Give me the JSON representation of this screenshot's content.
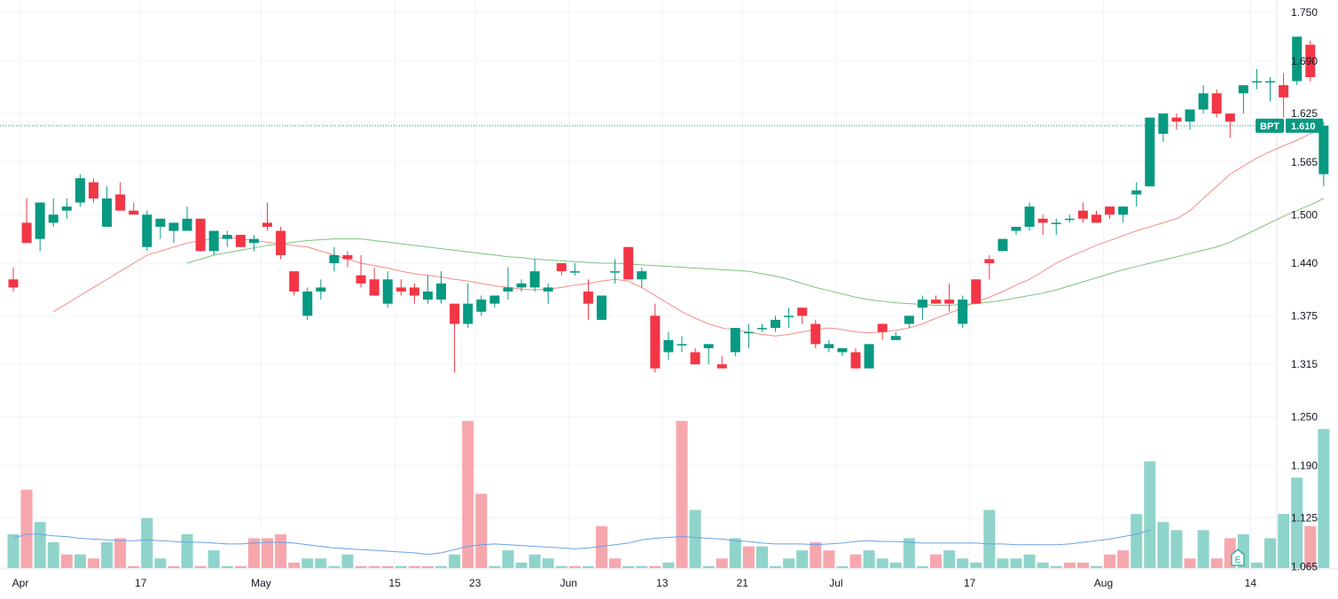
{
  "chart_data": {
    "type": "candlestick",
    "symbol": "BPT",
    "last_price": "1.610",
    "y_axis_ticks": [
      "1.750",
      "1.690",
      "1.625",
      "1.565",
      "1.500",
      "1.440",
      "1.375",
      "1.315",
      "1.250",
      "1.190",
      "1.125",
      "1.065"
    ],
    "ylim": [
      1.035,
      1.765
    ],
    "x_axis_ticks": [
      {
        "label": "Apr",
        "index": 0
      },
      {
        "label": "17",
        "index": 9
      },
      {
        "label": "May",
        "index": 18
      },
      {
        "label": "15",
        "index": 28
      },
      {
        "label": "23",
        "index": 34
      },
      {
        "label": "Jun",
        "index": 41
      },
      {
        "label": "13",
        "index": 48
      },
      {
        "label": "21",
        "index": 54
      },
      {
        "label": "Jul",
        "index": 61
      },
      {
        "label": "17",
        "index": 71
      },
      {
        "label": "Aug",
        "index": 81
      },
      {
        "label": "14",
        "index": 92
      }
    ],
    "candles": [
      [
        1.42,
        1.435,
        1.405,
        1.41
      ],
      [
        1.49,
        1.52,
        1.465,
        1.465
      ],
      [
        1.47,
        1.515,
        1.455,
        1.515
      ],
      [
        1.49,
        1.52,
        1.485,
        1.5
      ],
      [
        1.505,
        1.52,
        1.495,
        1.51
      ],
      [
        1.515,
        1.55,
        1.51,
        1.545
      ],
      [
        1.54,
        1.545,
        1.515,
        1.52
      ],
      [
        1.485,
        1.535,
        1.485,
        1.52
      ],
      [
        1.525,
        1.54,
        1.505,
        1.505
      ],
      [
        1.505,
        1.515,
        1.5,
        1.5
      ],
      [
        1.46,
        1.505,
        1.455,
        1.5
      ],
      [
        1.485,
        1.495,
        1.47,
        1.495
      ],
      [
        1.48,
        1.49,
        1.465,
        1.49
      ],
      [
        1.48,
        1.51,
        1.48,
        1.495
      ],
      [
        1.495,
        1.495,
        1.455,
        1.455
      ],
      [
        1.455,
        1.48,
        1.45,
        1.48
      ],
      [
        1.47,
        1.48,
        1.46,
        1.475
      ],
      [
        1.475,
        1.475,
        1.46,
        1.46
      ],
      [
        1.465,
        1.475,
        1.455,
        1.47
      ],
      [
        1.49,
        1.515,
        1.48,
        1.485
      ],
      [
        1.48,
        1.485,
        1.445,
        1.45
      ],
      [
        1.43,
        1.43,
        1.4,
        1.405
      ],
      [
        1.375,
        1.41,
        1.37,
        1.405
      ],
      [
        1.405,
        1.42,
        1.395,
        1.41
      ],
      [
        1.44,
        1.46,
        1.43,
        1.45
      ],
      [
        1.45,
        1.455,
        1.435,
        1.445
      ],
      [
        1.425,
        1.45,
        1.41,
        1.415
      ],
      [
        1.42,
        1.435,
        1.4,
        1.4
      ],
      [
        1.39,
        1.43,
        1.385,
        1.42
      ],
      [
        1.41,
        1.42,
        1.4,
        1.405
      ],
      [
        1.41,
        1.415,
        1.39,
        1.4
      ],
      [
        1.395,
        1.425,
        1.39,
        1.405
      ],
      [
        1.395,
        1.43,
        1.39,
        1.415
      ],
      [
        1.39,
        1.39,
        1.305,
        1.365
      ],
      [
        1.365,
        1.415,
        1.36,
        1.39
      ],
      [
        1.38,
        1.4,
        1.375,
        1.395
      ],
      [
        1.39,
        1.4,
        1.385,
        1.4
      ],
      [
        1.405,
        1.435,
        1.395,
        1.41
      ],
      [
        1.41,
        1.42,
        1.405,
        1.415
      ],
      [
        1.41,
        1.445,
        1.405,
        1.43
      ],
      [
        1.405,
        1.415,
        1.39,
        1.41
      ],
      [
        1.44,
        1.44,
        1.425,
        1.43
      ],
      [
        1.43,
        1.44,
        1.425,
        1.43
      ],
      [
        1.405,
        1.42,
        1.37,
        1.39
      ],
      [
        1.37,
        1.4,
        1.37,
        1.4
      ],
      [
        1.43,
        1.445,
        1.415,
        1.43
      ],
      [
        1.46,
        1.46,
        1.42,
        1.42
      ],
      [
        1.42,
        1.435,
        1.41,
        1.43
      ],
      [
        1.375,
        1.39,
        1.305,
        1.31
      ],
      [
        1.33,
        1.355,
        1.32,
        1.345
      ],
      [
        1.34,
        1.35,
        1.33,
        1.34
      ],
      [
        1.33,
        1.335,
        1.315,
        1.315
      ],
      [
        1.335,
        1.34,
        1.315,
        1.34
      ],
      [
        1.315,
        1.325,
        1.31,
        1.31
      ],
      [
        1.33,
        1.36,
        1.325,
        1.36
      ],
      [
        1.355,
        1.365,
        1.335,
        1.355
      ],
      [
        1.36,
        1.365,
        1.355,
        1.36
      ],
      [
        1.36,
        1.375,
        1.355,
        1.37
      ],
      [
        1.375,
        1.385,
        1.36,
        1.375
      ],
      [
        1.385,
        1.385,
        1.365,
        1.375
      ],
      [
        1.365,
        1.37,
        1.335,
        1.34
      ],
      [
        1.335,
        1.345,
        1.33,
        1.34
      ],
      [
        1.33,
        1.335,
        1.325,
        1.335
      ],
      [
        1.33,
        1.335,
        1.31,
        1.31
      ],
      [
        1.31,
        1.34,
        1.31,
        1.34
      ],
      [
        1.365,
        1.365,
        1.345,
        1.355
      ],
      [
        1.345,
        1.355,
        1.345,
        1.35
      ],
      [
        1.365,
        1.375,
        1.36,
        1.375
      ],
      [
        1.385,
        1.4,
        1.37,
        1.395
      ],
      [
        1.395,
        1.4,
        1.39,
        1.39
      ],
      [
        1.395,
        1.415,
        1.38,
        1.39
      ],
      [
        1.365,
        1.4,
        1.36,
        1.395
      ],
      [
        1.42,
        1.42,
        1.39,
        1.39
      ],
      [
        1.445,
        1.45,
        1.42,
        1.44
      ],
      [
        1.455,
        1.47,
        1.455,
        1.47
      ],
      [
        1.48,
        1.485,
        1.475,
        1.485
      ],
      [
        1.485,
        1.515,
        1.48,
        1.51
      ],
      [
        1.495,
        1.5,
        1.475,
        1.49
      ],
      [
        1.49,
        1.495,
        1.475,
        1.49
      ],
      [
        1.495,
        1.5,
        1.49,
        1.495
      ],
      [
        1.505,
        1.515,
        1.49,
        1.495
      ],
      [
        1.5,
        1.505,
        1.49,
        1.49
      ],
      [
        1.51,
        1.51,
        1.495,
        1.5
      ],
      [
        1.5,
        1.51,
        1.49,
        1.51
      ],
      [
        1.525,
        1.54,
        1.51,
        1.53
      ],
      [
        1.535,
        1.62,
        1.535,
        1.62
      ],
      [
        1.6,
        1.625,
        1.59,
        1.625
      ],
      [
        1.62,
        1.625,
        1.605,
        1.615
      ],
      [
        1.615,
        1.63,
        1.605,
        1.63
      ],
      [
        1.63,
        1.66,
        1.625,
        1.65
      ],
      [
        1.65,
        1.655,
        1.62,
        1.625
      ],
      [
        1.625,
        1.625,
        1.595,
        1.615
      ],
      [
        1.65,
        1.655,
        1.625,
        1.66
      ],
      [
        1.665,
        1.68,
        1.655,
        1.665
      ],
      [
        1.665,
        1.67,
        1.64,
        1.665
      ],
      [
        1.66,
        1.675,
        1.62,
        1.645
      ],
      [
        1.665,
        1.72,
        1.66,
        1.72
      ],
      [
        1.71,
        1.715,
        1.665,
        1.67
      ],
      [
        1.55,
        1.615,
        1.535,
        1.61
      ]
    ],
    "volume": [
      [
        1.105,
        "up"
      ],
      [
        1.16,
        "down"
      ],
      [
        1.12,
        "up"
      ],
      [
        1.095,
        "up"
      ],
      [
        1.08,
        "down"
      ],
      [
        1.08,
        "up"
      ],
      [
        1.075,
        "down"
      ],
      [
        1.095,
        "up"
      ],
      [
        1.1,
        "down"
      ],
      [
        1.06,
        "down"
      ],
      [
        1.125,
        "up"
      ],
      [
        1.075,
        "up"
      ],
      [
        1.065,
        "down"
      ],
      [
        1.105,
        "up"
      ],
      [
        1.06,
        "down"
      ],
      [
        1.085,
        "up"
      ],
      [
        1.05,
        "up"
      ],
      [
        1.045,
        "down"
      ],
      [
        1.1,
        "down"
      ],
      [
        1.1,
        "down"
      ],
      [
        1.105,
        "down"
      ],
      [
        1.07,
        "down"
      ],
      [
        1.075,
        "up"
      ],
      [
        1.075,
        "up"
      ],
      [
        1.065,
        "up"
      ],
      [
        1.08,
        "up"
      ],
      [
        1.065,
        "down"
      ],
      [
        1.065,
        "down"
      ],
      [
        1.065,
        "down"
      ],
      [
        1.06,
        "up"
      ],
      [
        1.05,
        "down"
      ],
      [
        1.035,
        "down"
      ],
      [
        1.065,
        "up"
      ],
      [
        1.08,
        "up"
      ],
      [
        1.245,
        "down"
      ],
      [
        1.155,
        "down"
      ],
      [
        1.05,
        "up"
      ],
      [
        1.085,
        "up"
      ],
      [
        1.07,
        "up"
      ],
      [
        1.08,
        "up"
      ],
      [
        1.075,
        "up"
      ],
      [
        1.065,
        "up"
      ],
      [
        1.045,
        "down"
      ],
      [
        1.065,
        "up"
      ],
      [
        1.115,
        "down"
      ],
      [
        1.075,
        "down"
      ],
      [
        1.05,
        "up"
      ],
      [
        1.065,
        "up"
      ],
      [
        1.065,
        "down"
      ],
      [
        1.07,
        "up"
      ],
      [
        1.245,
        "down"
      ],
      [
        1.135,
        "up"
      ],
      [
        1.06,
        "up"
      ],
      [
        1.075,
        "down"
      ],
      [
        1.1,
        "up"
      ],
      [
        1.09,
        "down"
      ],
      [
        1.09,
        "up"
      ],
      [
        1.06,
        "up"
      ],
      [
        1.075,
        "up"
      ],
      [
        1.085,
        "up"
      ],
      [
        1.095,
        "down"
      ],
      [
        1.085,
        "down"
      ],
      [
        1.06,
        "up"
      ],
      [
        1.08,
        "down"
      ],
      [
        1.085,
        "up"
      ],
      [
        1.075,
        "up"
      ],
      [
        1.07,
        "up"
      ],
      [
        1.1,
        "up"
      ],
      [
        1.06,
        "up"
      ],
      [
        1.08,
        "down"
      ],
      [
        1.085,
        "up"
      ],
      [
        1.075,
        "up"
      ],
      [
        1.07,
        "up"
      ],
      [
        1.135,
        "up"
      ],
      [
        1.075,
        "up"
      ],
      [
        1.075,
        "up"
      ],
      [
        1.08,
        "up"
      ],
      [
        1.07,
        "up"
      ],
      [
        1.05,
        "up"
      ],
      [
        1.07,
        "down"
      ],
      [
        1.07,
        "down"
      ],
      [
        1.065,
        "up"
      ],
      [
        1.08,
        "down"
      ],
      [
        1.085,
        "down"
      ],
      [
        1.13,
        "up"
      ],
      [
        1.195,
        "up"
      ],
      [
        1.12,
        "up"
      ],
      [
        1.11,
        "up"
      ],
      [
        1.075,
        "down"
      ],
      [
        1.11,
        "up"
      ],
      [
        1.075,
        "down"
      ],
      [
        1.1,
        "down"
      ],
      [
        1.105,
        "up"
      ],
      [
        1.07,
        "up"
      ],
      [
        1.1,
        "up"
      ],
      [
        1.13,
        "up"
      ],
      [
        1.175,
        "up"
      ],
      [
        1.115,
        "down"
      ],
      [
        1.235,
        "up"
      ]
    ],
    "ma_red": [
      1.38,
      1.39,
      1.4,
      1.41,
      1.42,
      1.43,
      1.44,
      1.45,
      1.455,
      1.46,
      1.465,
      1.468,
      1.47,
      1.472,
      1.47,
      1.468,
      1.466,
      1.464,
      1.462,
      1.46,
      1.455,
      1.45,
      1.445,
      1.44,
      1.437,
      1.434,
      1.43,
      1.427,
      1.425,
      1.423,
      1.42,
      1.418,
      1.415,
      1.412,
      1.41,
      1.408,
      1.407,
      1.408,
      1.41,
      1.413,
      1.415,
      1.418,
      1.42,
      1.418,
      1.41,
      1.4,
      1.39,
      1.38,
      1.372,
      1.365,
      1.36,
      1.357,
      1.355,
      1.352,
      1.35,
      1.352,
      1.355,
      1.358,
      1.36,
      1.358,
      1.355,
      1.354,
      1.355,
      1.357,
      1.36,
      1.365,
      1.372,
      1.378,
      1.385,
      1.392,
      1.398,
      1.405,
      1.413,
      1.42,
      1.43,
      1.44,
      1.448,
      1.455,
      1.462,
      1.468,
      1.474,
      1.48,
      1.485,
      1.49,
      1.495,
      1.505,
      1.52,
      1.535,
      1.55,
      1.56,
      1.57,
      1.578,
      1.585,
      1.592,
      1.6,
      1.605
    ],
    "ma_green": [
      1.44,
      1.445,
      1.45,
      1.453,
      1.456,
      1.459,
      1.462,
      1.464,
      1.466,
      1.468,
      1.469,
      1.47,
      1.47,
      1.47,
      1.468,
      1.466,
      1.464,
      1.462,
      1.46,
      1.458,
      1.456,
      1.454,
      1.452,
      1.45,
      1.448,
      1.447,
      1.445,
      1.444,
      1.443,
      1.442,
      1.441,
      1.44,
      1.44,
      1.439,
      1.438,
      1.437,
      1.436,
      1.435,
      1.434,
      1.433,
      1.432,
      1.431,
      1.43,
      1.427,
      1.424,
      1.42,
      1.415,
      1.41,
      1.406,
      1.402,
      1.398,
      1.395,
      1.393,
      1.391,
      1.39,
      1.389,
      1.388,
      1.388,
      1.389,
      1.39,
      1.392,
      1.394,
      1.397,
      1.4,
      1.403,
      1.407,
      1.412,
      1.417,
      1.422,
      1.427,
      1.432,
      1.436,
      1.44,
      1.444,
      1.448,
      1.452,
      1.456,
      1.46,
      1.466,
      1.474,
      1.482,
      1.49,
      1.498,
      1.505,
      1.512,
      1.52
    ],
    "volume_ma": [
      1.1,
      1.105,
      1.105,
      1.103,
      1.102,
      1.1,
      1.099,
      1.098,
      1.097,
      1.097,
      1.098,
      1.097,
      1.096,
      1.095,
      1.095,
      1.094,
      1.093,
      1.093,
      1.094,
      1.095,
      1.095,
      1.094,
      1.092,
      1.09,
      1.088,
      1.087,
      1.086,
      1.085,
      1.084,
      1.083,
      1.082,
      1.08,
      1.082,
      1.086,
      1.09,
      1.092,
      1.093,
      1.092,
      1.091,
      1.09,
      1.089,
      1.088,
      1.087,
      1.088,
      1.09,
      1.092,
      1.094,
      1.098,
      1.1,
      1.101,
      1.102,
      1.101,
      1.1,
      1.099,
      1.097,
      1.096,
      1.094,
      1.093,
      1.093,
      1.093,
      1.092,
      1.093,
      1.094,
      1.096,
      1.097,
      1.096,
      1.096,
      1.095,
      1.094,
      1.094,
      1.094,
      1.094,
      1.094,
      1.093,
      1.093,
      1.092,
      1.092,
      1.092,
      1.092,
      1.093,
      1.095,
      1.097,
      1.099,
      1.102,
      1.105,
      1.11
    ]
  },
  "colors": {
    "up": "#089981",
    "down": "#f23645",
    "up_volume": "#8fd4ca",
    "down_volume": "#f6a7ad",
    "ma_red": "#f58d86",
    "ma_green": "#7cc37c",
    "volume_ma": "#6aa0e6",
    "price_line": "#089981",
    "grid": "#f0f3fa",
    "axis_text": "#131722",
    "earnings_badge": "#22ab94"
  },
  "icons": {
    "earnings_marker": "E"
  }
}
